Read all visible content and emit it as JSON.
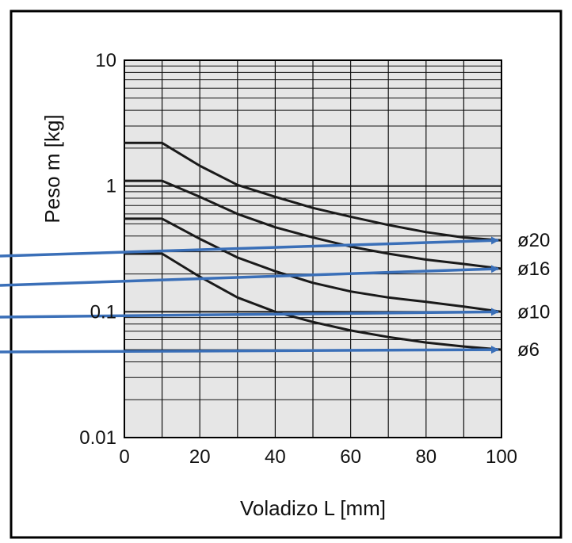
{
  "chart_data": {
    "type": "line",
    "xlabel": "Voladizo L [mm]",
    "ylabel": "Peso m [kg]",
    "xlim": [
      0,
      100
    ],
    "ylim": [
      0.01,
      10
    ],
    "y_scale": "log",
    "grid": true,
    "x_ticks": [
      "0",
      "20",
      "40",
      "60",
      "80",
      "100"
    ],
    "y_ticks": [
      "0.01",
      "0.1",
      "1",
      "10"
    ],
    "series": [
      {
        "name": "ø20",
        "color": "#1a1a1a",
        "x": [
          0,
          10,
          20,
          30,
          40,
          50,
          60,
          70,
          80,
          90,
          100
        ],
        "y": [
          2.2,
          2.2,
          1.45,
          1.02,
          0.82,
          0.67,
          0.57,
          0.49,
          0.43,
          0.39,
          0.37
        ]
      },
      {
        "name": "ø16",
        "color": "#1a1a1a",
        "x": [
          0,
          10,
          20,
          30,
          40,
          50,
          60,
          70,
          80,
          90,
          100
        ],
        "y": [
          1.1,
          1.1,
          0.82,
          0.6,
          0.47,
          0.39,
          0.33,
          0.29,
          0.26,
          0.24,
          0.22
        ]
      },
      {
        "name": "ø10",
        "color": "#1a1a1a",
        "x": [
          0,
          10,
          20,
          30,
          40,
          50,
          60,
          70,
          80,
          90,
          100
        ],
        "y": [
          0.55,
          0.55,
          0.38,
          0.27,
          0.21,
          0.17,
          0.145,
          0.13,
          0.12,
          0.11,
          0.1
        ]
      },
      {
        "name": "ø6",
        "color": "#1a1a1a",
        "x": [
          0,
          10,
          20,
          30,
          40,
          50,
          60,
          70,
          80,
          90,
          100
        ],
        "y": [
          0.29,
          0.29,
          0.19,
          0.13,
          0.1,
          0.083,
          0.071,
          0.063,
          0.057,
          0.053,
          0.05
        ]
      }
    ],
    "annotations": {
      "arrow_color": "#3a6fb8",
      "arrow_targets": [
        "ø20",
        "ø16",
        "ø10",
        "ø6"
      ]
    },
    "colors": {
      "plot_background": "#e6e6e6",
      "grid": "#111111",
      "frame": "#000000"
    }
  }
}
